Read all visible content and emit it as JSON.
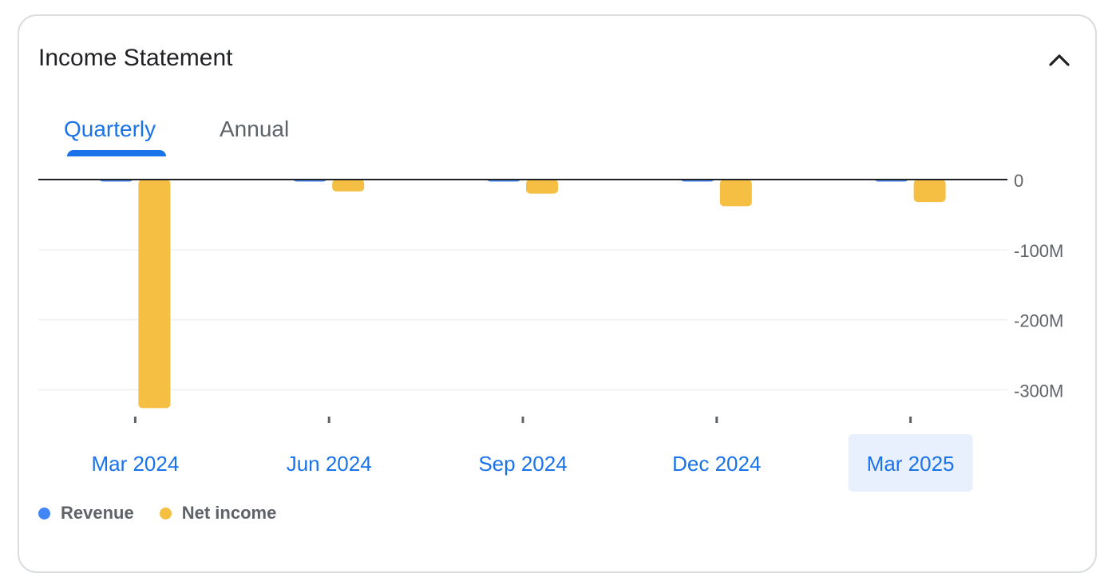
{
  "card": {
    "title": "Income Statement",
    "collapse_icon": "chevron-up-icon"
  },
  "tabs": [
    {
      "label": "Quarterly",
      "selected": true
    },
    {
      "label": "Annual",
      "selected": false
    }
  ],
  "chart_data": {
    "type": "bar",
    "categories": [
      "Mar 2024",
      "Jun 2024",
      "Sep 2024",
      "Dec 2024",
      "Mar 2025"
    ],
    "selected_category": "Mar 2025",
    "series": [
      {
        "name": "Revenue",
        "color": "#4285f4",
        "values": [
          0.5,
          0.5,
          0.5,
          0.5,
          0.5
        ]
      },
      {
        "name": "Net income",
        "color": "#f4bf42",
        "values": [
          -326,
          -17,
          -20,
          -38,
          -32
        ]
      }
    ],
    "unit": "M",
    "yticks": [
      {
        "value": 0,
        "label": "0"
      },
      {
        "value": -100,
        "label": "-100M"
      },
      {
        "value": -200,
        "label": "-200M"
      },
      {
        "value": -300,
        "label": "-300M"
      }
    ],
    "ylim": [
      -330,
      0
    ],
    "legend_placement": "bottom-left",
    "grid": true
  }
}
